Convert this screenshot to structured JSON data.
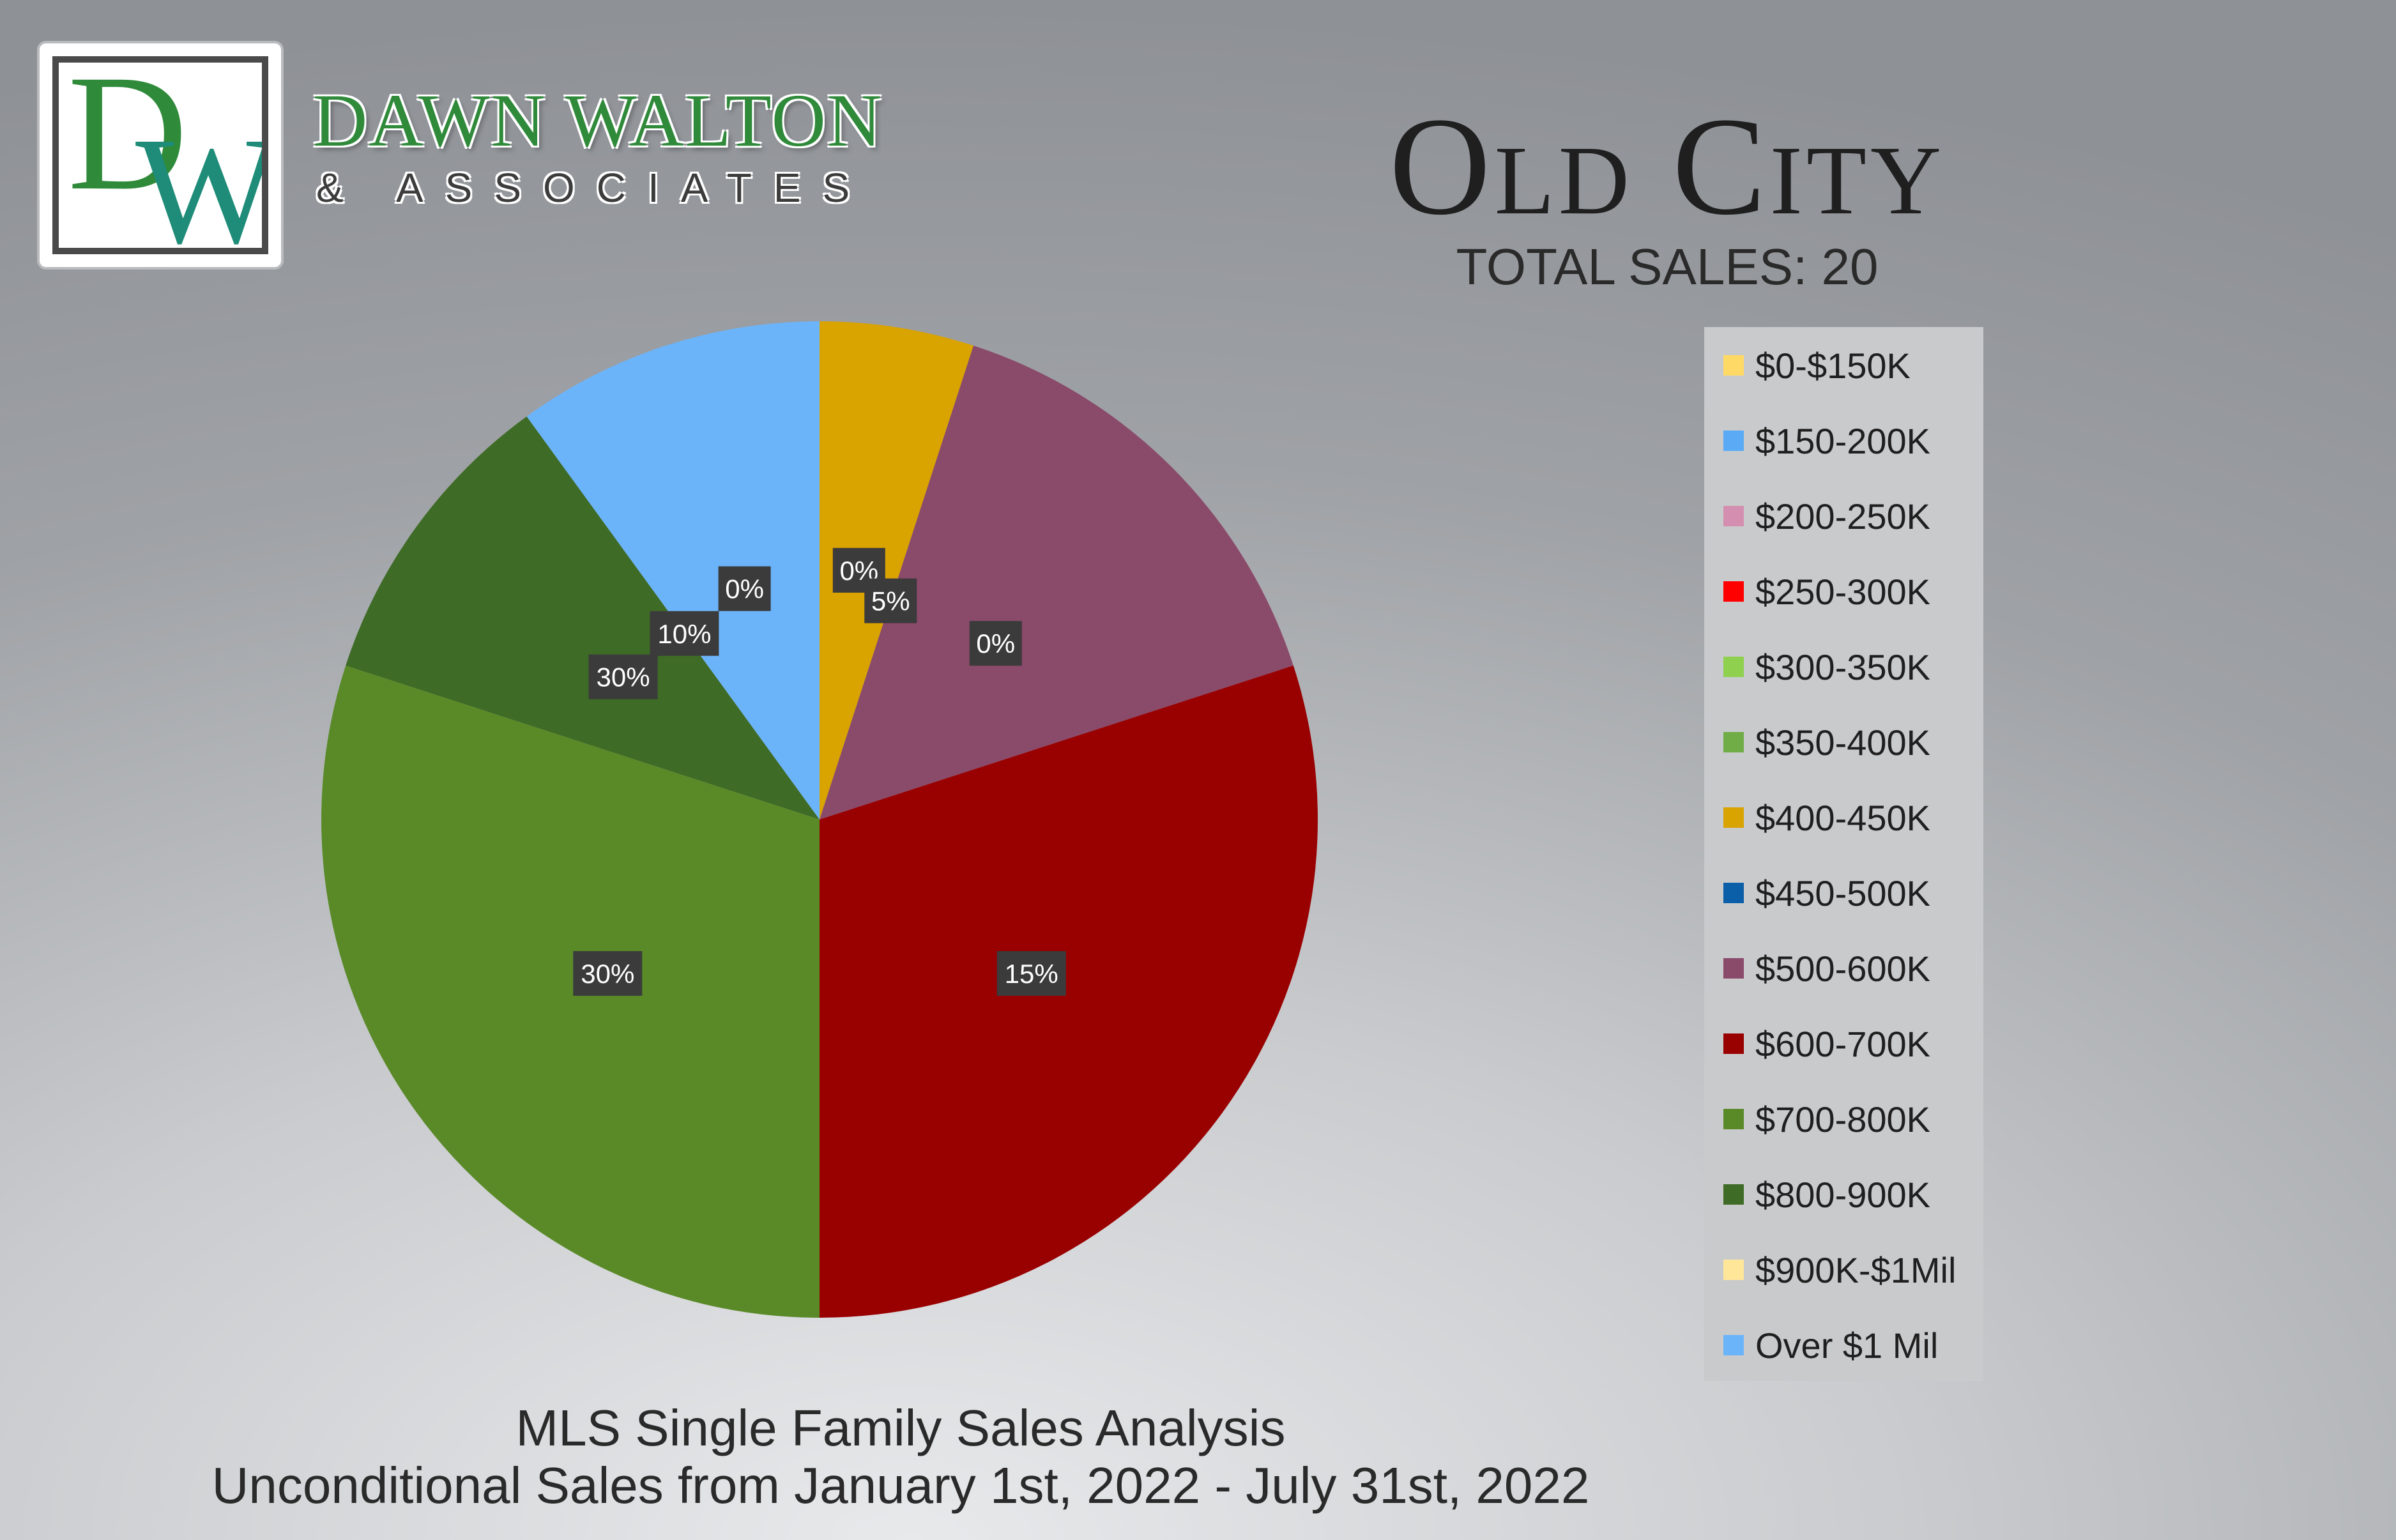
{
  "brand": {
    "logo_letters": "DW",
    "name": "DAWN WALTON",
    "subtitle": "& ASSOCIATES"
  },
  "header": {
    "title": "Old City",
    "total_sales": "TOTAL SALES: 20"
  },
  "footer": {
    "line1": "MLS Single Family Sales Analysis",
    "line2": "Unconditional Sales from January 1st, 2022 - July 31st, 2022"
  },
  "chart_data": {
    "type": "pie",
    "title": "Old City",
    "categories": [
      "$0-$150K",
      "$150-200K",
      "$200-250K",
      "$250-300K",
      "$300-350K",
      "$350-400K",
      "$400-450K",
      "$450-500K",
      "$500-600K",
      "$600-700K",
      "$700-800K",
      "$800-900K",
      "$900K-$1Mil",
      "Over $1 Mil"
    ],
    "values": [
      0,
      0,
      0,
      0,
      0,
      0,
      5,
      0,
      15,
      30,
      30,
      10,
      0,
      10
    ],
    "colors": [
      "#ffd966",
      "#5aaaf5",
      "#d48fb0",
      "#ff0000",
      "#8fd14f",
      "#70ad47",
      "#d9a300",
      "#0b5ea8",
      "#8a4a6a",
      "#990000",
      "#5a8a28",
      "#3e6b26",
      "#ffe699",
      "#6cb4fa"
    ],
    "label_texts": [
      "0%",
      "5%",
      "0%",
      "15%",
      "30%",
      "30%",
      "10%",
      "0%",
      "10%"
    ],
    "legend_position": "right"
  }
}
